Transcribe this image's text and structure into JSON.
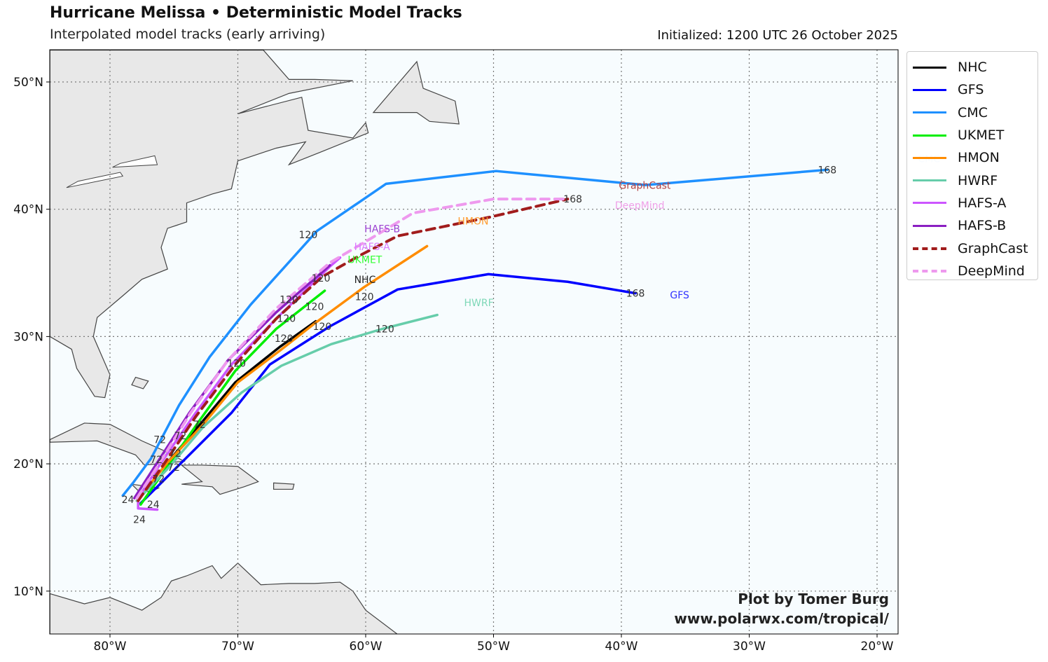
{
  "header": {
    "title": "Hurricane Melissa • Deterministic Model Tracks",
    "subtitle": "Interpolated model tracks (early arriving)",
    "initialized": "Initialized: 1200 UTC 26 October 2025"
  },
  "credit": {
    "line1": "Plot by Tomer Burg",
    "line2": "www.polarwx.com/tropical/"
  },
  "chart_data": {
    "type": "map-tracks",
    "extent": {
      "lon": [
        -84.7,
        -18.4
      ],
      "lat": [
        6.6,
        52.5
      ]
    },
    "x_ticks": [
      {
        "value": -80,
        "label": "80°W"
      },
      {
        "value": -70,
        "label": "70°W"
      },
      {
        "value": -60,
        "label": "60°W"
      },
      {
        "value": -50,
        "label": "50°W"
      },
      {
        "value": -40,
        "label": "40°W"
      },
      {
        "value": -30,
        "label": "30°W"
      },
      {
        "value": -20,
        "label": "20°W"
      }
    ],
    "y_ticks": [
      {
        "value": 10,
        "label": "10°N"
      },
      {
        "value": 20,
        "label": "20°N"
      },
      {
        "value": 30,
        "label": "30°N"
      },
      {
        "value": 40,
        "label": "40°N"
      },
      {
        "value": 50,
        "label": "50°N"
      }
    ],
    "grid": true,
    "legend_position": "outside-right",
    "series": [
      {
        "name": "NHC",
        "color": "#000000",
        "dash": false,
        "label_color": "#222222",
        "label_pos": [
          -60.9,
          34.2
        ],
        "points": [
          [
            -77.9,
            17.1
          ],
          [
            -75.5,
            20.1
          ],
          [
            -72.7,
            23.4
          ],
          [
            -70.2,
            26.4
          ],
          [
            -66.7,
            29.2
          ],
          [
            -63.9,
            31.2
          ]
        ]
      },
      {
        "name": "GFS",
        "color": "#0000ff",
        "dash": false,
        "label_color": "#3333ff",
        "label_pos": [
          -36.2,
          33.0
        ],
        "points": [
          [
            -77.6,
            16.9
          ],
          [
            -76.0,
            18.5
          ],
          [
            -73.8,
            20.7
          ],
          [
            -70.5,
            24.0
          ],
          [
            -67.5,
            27.8
          ],
          [
            -62.8,
            30.8
          ],
          [
            -57.5,
            33.7
          ],
          [
            -50.4,
            34.9
          ],
          [
            -44.2,
            34.3
          ],
          [
            -38.9,
            33.4
          ]
        ]
      },
      {
        "name": "CMC",
        "color": "#1e90ff",
        "dash": false,
        "label_color": "#cfe4fb",
        "label_pos": [
          -16.8,
          43.7
        ],
        "points": [
          [
            -79.0,
            17.5
          ],
          [
            -78.2,
            18.5
          ],
          [
            -76.8,
            20.4
          ],
          [
            -74.6,
            24.6
          ],
          [
            -72.2,
            28.4
          ],
          [
            -69.0,
            32.5
          ],
          [
            -63.8,
            38.3
          ],
          [
            -58.4,
            42.0
          ],
          [
            -49.8,
            43.0
          ],
          [
            -38.1,
            41.9
          ],
          [
            -23.9,
            43.1
          ]
        ]
      },
      {
        "name": "UKMET",
        "color": "#00ee00",
        "dash": false,
        "label_color": "#33ff33",
        "label_pos": [
          -61.4,
          35.0
        ],
        "points": [
          [
            -77.6,
            16.8
          ],
          [
            -75.5,
            19.8
          ],
          [
            -73.0,
            23.4
          ],
          [
            -70.2,
            27.3
          ],
          [
            -67.0,
            30.6
          ],
          [
            -63.2,
            33.6
          ]
        ]
      },
      {
        "name": "HMON",
        "color": "#ff8c00",
        "dash": false,
        "label_color": "#ff9d33",
        "label_pos": [
          -52.8,
          38.8
        ],
        "points": [
          [
            -77.9,
            17.1
          ],
          [
            -75.5,
            20.1
          ],
          [
            -72.7,
            23.1
          ],
          [
            -70.0,
            26.4
          ],
          [
            -66.7,
            28.9
          ],
          [
            -63.9,
            31.1
          ],
          [
            -60.1,
            33.9
          ],
          [
            -55.2,
            37.1
          ]
        ]
      },
      {
        "name": "HWRF",
        "color": "#66cdaa",
        "dash": false,
        "label_color": "#7fd8b8",
        "label_pos": [
          -52.3,
          32.4
        ],
        "points": [
          [
            -77.9,
            17.1
          ],
          [
            -75.5,
            19.6
          ],
          [
            -72.7,
            22.9
          ],
          [
            -69.7,
            25.6
          ],
          [
            -66.6,
            27.7
          ],
          [
            -62.7,
            29.4
          ],
          [
            -58.7,
            30.6
          ],
          [
            -54.4,
            31.7
          ]
        ]
      },
      {
        "name": "HAFS-A",
        "color": "#cc55ff",
        "dash": false,
        "label_color": "#d97aff",
        "label_pos": [
          -60.9,
          36.8
        ],
        "points": [
          [
            -76.3,
            16.4
          ],
          [
            -77.8,
            16.5
          ],
          [
            -77.8,
            17.3
          ],
          [
            -76.0,
            20.1
          ],
          [
            -73.3,
            24.0
          ],
          [
            -70.5,
            27.8
          ],
          [
            -66.7,
            31.7
          ],
          [
            -62.8,
            35.5
          ],
          [
            -62.0,
            36.2
          ]
        ]
      },
      {
        "name": "HAFS-B",
        "color": "#8b1fc2",
        "dash": false,
        "label_color": "#9b3fd0",
        "label_pos": [
          -60.1,
          38.2
        ],
        "points": [
          [
            -78.1,
            17.3
          ],
          [
            -76.3,
            20.1
          ],
          [
            -73.8,
            24.0
          ],
          [
            -70.8,
            28.1
          ],
          [
            -67.0,
            31.9
          ],
          [
            -62.8,
            35.6
          ]
        ]
      },
      {
        "name": "GraphCast",
        "color": "#a11c1c",
        "dash": true,
        "label_color": "#b34040",
        "label_pos": [
          -40.2,
          41.6
        ],
        "points": [
          [
            -77.8,
            17.1
          ],
          [
            -75.7,
            20.1
          ],
          [
            -73.3,
            23.7
          ],
          [
            -70.2,
            27.8
          ],
          [
            -67.0,
            31.4
          ],
          [
            -63.4,
            34.7
          ],
          [
            -60.4,
            36.4
          ],
          [
            -57.5,
            37.9
          ],
          [
            -50.2,
            39.4
          ],
          [
            -44.2,
            40.8
          ]
        ]
      },
      {
        "name": "DeepMind",
        "color": "#ee99ee",
        "dash": true,
        "label_color": "#f0a0e8",
        "label_pos": [
          -40.5,
          40.8
        ],
        "points": [
          [
            -77.9,
            17.3
          ],
          [
            -76.1,
            20.1
          ],
          [
            -73.7,
            24.0
          ],
          [
            -70.8,
            28.1
          ],
          [
            -67.0,
            32.2
          ],
          [
            -62.8,
            35.8
          ],
          [
            -59.6,
            37.7
          ],
          [
            -56.3,
            39.7
          ],
          [
            -50.0,
            40.8
          ],
          [
            -44.2,
            40.8
          ]
        ]
      }
    ],
    "hour_labels": [
      {
        "text": "120",
        "lon": -64.5,
        "lat": 38.0
      },
      {
        "text": "72",
        "lon": -76.1,
        "lat": 21.9
      },
      {
        "text": "24",
        "lon": -78.6,
        "lat": 17.2
      },
      {
        "text": "168",
        "lon": -23.9,
        "lat": 43.1
      },
      {
        "text": "168",
        "lon": -38.9,
        "lat": 33.4
      },
      {
        "text": "120",
        "lon": -63.4,
        "lat": 30.8
      },
      {
        "text": "120",
        "lon": -58.5,
        "lat": 30.6
      },
      {
        "text": "120",
        "lon": -64.0,
        "lat": 31.6
      },
      {
        "text": "120",
        "lon": -60.1,
        "lat": 33.9
      },
      {
        "text": "120",
        "lon": -66.0,
        "lat": 32.9
      },
      {
        "text": "120",
        "lon": -66.2,
        "lat": 32.2
      },
      {
        "text": "120",
        "lon": -66.4,
        "lat": 31.4
      },
      {
        "text": "120",
        "lon": -63.5,
        "lat": 34.6
      },
      {
        "text": "120",
        "lon": -70.1,
        "lat": 27.9
      },
      {
        "text": "168",
        "lon": -43.8,
        "lat": 40.8
      },
      {
        "text": "72",
        "lon": -73.0,
        "lat": 23.1
      },
      {
        "text": "72",
        "lon": -74.5,
        "lat": 22.2
      },
      {
        "text": "72",
        "lon": -74.9,
        "lat": 21.6
      },
      {
        "text": "72",
        "lon": -75.5,
        "lat": 21.1
      },
      {
        "text": "72",
        "lon": -75.9,
        "lat": 20.5
      },
      {
        "text": "72",
        "lon": -76.2,
        "lat": 19.6
      },
      {
        "text": "24",
        "lon": -77.7,
        "lat": 16.4
      },
      {
        "text": "24",
        "lon": -77.6,
        "lat": 16.8
      }
    ]
  }
}
